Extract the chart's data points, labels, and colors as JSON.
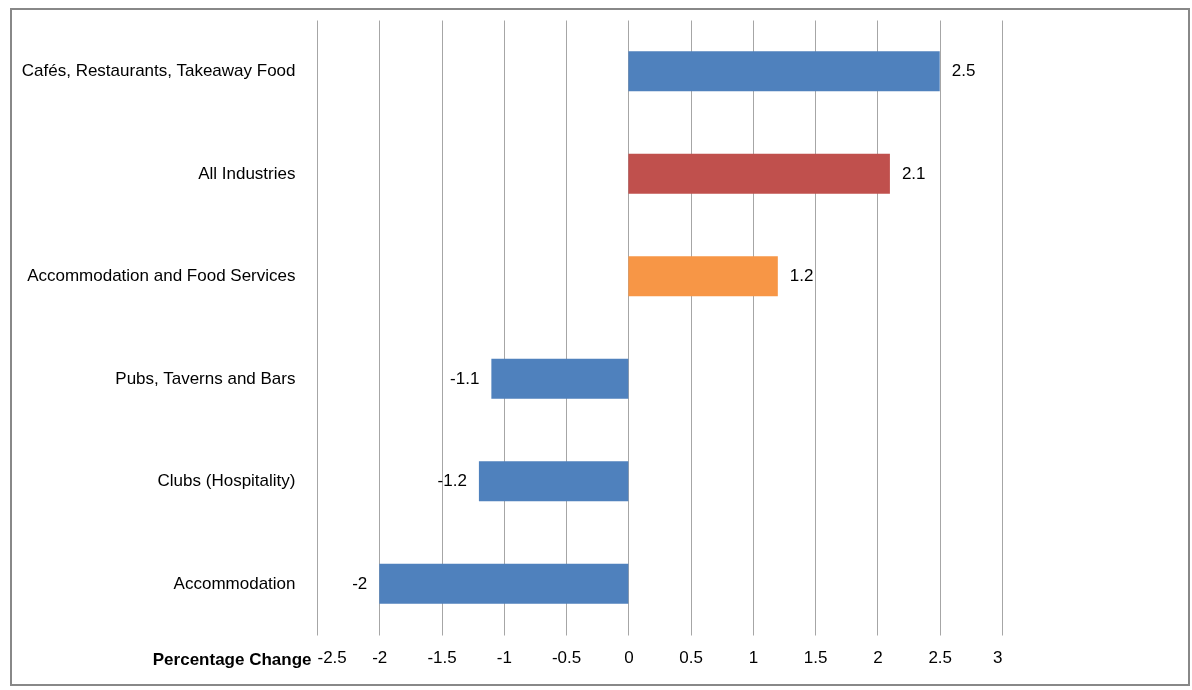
{
  "chart_data": {
    "type": "bar",
    "orientation": "horizontal",
    "xlabel": "Percentage Change",
    "categories": [
      "Cafés, Restaurants, Takeaway Food",
      "All Industries",
      "Accommodation and Food Services",
      "Pubs, Taverns and Bars",
      "Clubs (Hospitality)",
      "Accommodation"
    ],
    "values": [
      2.5,
      2.1,
      1.2,
      -1.1,
      -1.2,
      -2
    ],
    "colors": [
      "#4f81bd",
      "#c0504d",
      "#f79646",
      "#4f81bd",
      "#4f81bd",
      "#4f81bd"
    ],
    "xlim": [
      -2.5,
      3
    ],
    "xticks": [
      -2.5,
      -2,
      -1.5,
      -1,
      -0.5,
      0,
      0.5,
      1,
      1.5,
      2,
      2.5,
      3
    ],
    "grid": "x",
    "data_labels": true,
    "legend": false
  }
}
